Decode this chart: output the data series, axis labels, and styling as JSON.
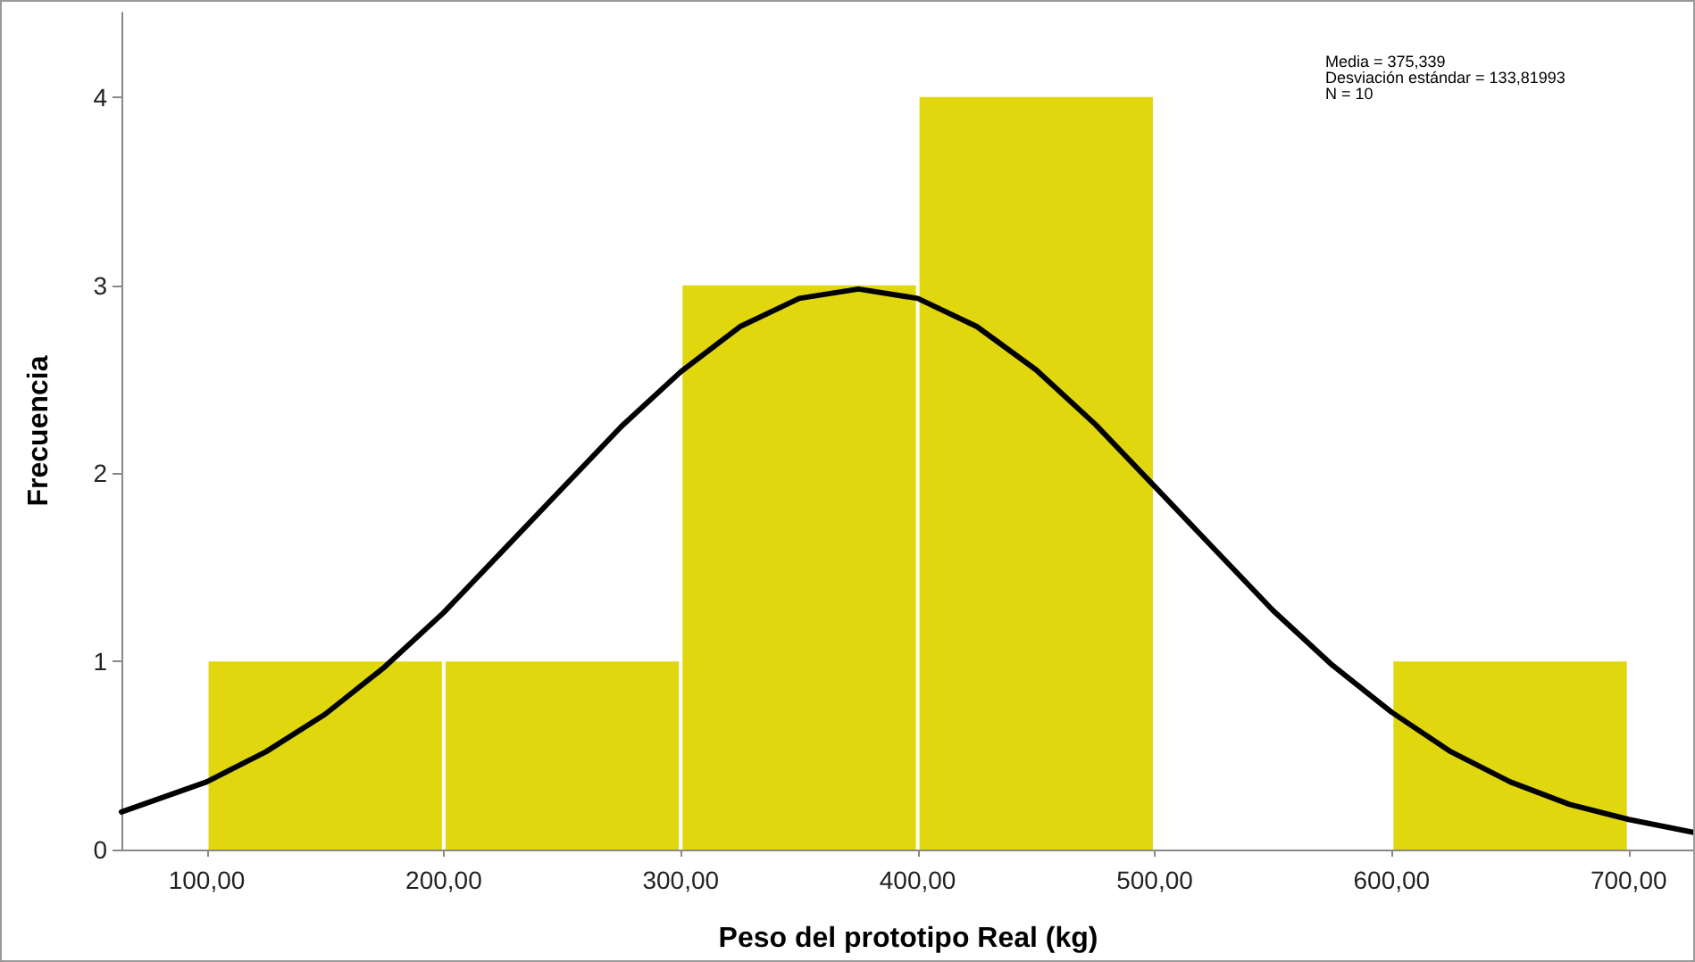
{
  "chart_data": {
    "type": "histogram",
    "xlabel": "Peso del prototipo Real (kg)",
    "ylabel": "Frecuencia",
    "bins": [
      100,
      200,
      300,
      400,
      500,
      600,
      700
    ],
    "values": [
      1,
      1,
      3,
      4,
      0,
      1
    ],
    "color": "#e1d70f",
    "xlim": [
      64,
      728
    ],
    "xticks": [
      {
        "value": 100,
        "label": "100,00"
      },
      {
        "value": 200,
        "label": "200,00"
      },
      {
        "value": 300,
        "label": "300,00"
      },
      {
        "value": 400,
        "label": "400,00"
      },
      {
        "value": 500,
        "label": "500,00"
      },
      {
        "value": 600,
        "label": "600,00"
      },
      {
        "value": 700,
        "label": "700,00"
      }
    ],
    "ylim": [
      0,
      4.45
    ],
    "yticks": [
      0,
      1,
      2,
      3,
      4
    ],
    "grid": false,
    "series": [
      {
        "type": "line",
        "color": "#000000",
        "x": [
          64,
          100,
          125,
          150,
          175,
          200,
          225,
          250,
          275,
          300,
          325,
          350,
          375,
          400,
          425,
          450,
          475,
          500,
          525,
          550,
          575,
          600,
          625,
          650,
          675,
          700,
          728
        ],
        "values": [
          0.2,
          0.36,
          0.52,
          0.72,
          0.97,
          1.26,
          1.59,
          1.92,
          2.25,
          2.54,
          2.78,
          2.93,
          2.98,
          2.93,
          2.78,
          2.55,
          2.26,
          1.93,
          1.6,
          1.27,
          0.98,
          0.73,
          0.52,
          0.36,
          0.24,
          0.16,
          0.09
        ]
      }
    ],
    "annotations": [
      "Media = 375,339",
      "Desviación estándar = 133,81993",
      "N = 10"
    ]
  }
}
